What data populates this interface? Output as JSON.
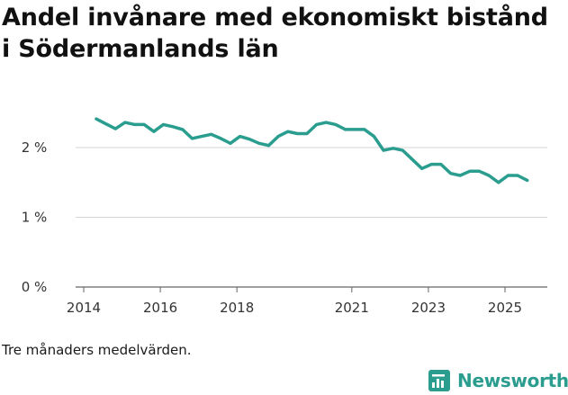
{
  "chart_data": {
    "type": "line",
    "title": "Andel invånare med ekonomiskt bistånd i Södermanlands län",
    "xlabel": "",
    "ylabel": "",
    "x_range": [
      2014.0,
      2026.3
    ],
    "ylim": [
      0,
      2.6
    ],
    "y_ticks": [
      {
        "value": 0,
        "label": "0 %"
      },
      {
        "value": 1,
        "label": "1 %"
      },
      {
        "value": 2,
        "label": "2 %"
      }
    ],
    "x_ticks": [
      {
        "value": 2014,
        "label": "2014"
      },
      {
        "value": 2016,
        "label": "2016"
      },
      {
        "value": 2018,
        "label": "2018"
      },
      {
        "value": 2021,
        "label": "2021"
      },
      {
        "value": 2023,
        "label": "2023"
      },
      {
        "value": 2025,
        "label": "2025"
      }
    ],
    "line_color": "#2a9d8f",
    "grid": true,
    "series": [
      {
        "name": "Andel invånare med ekonomiskt bistånd",
        "x": [
          2014.33,
          2014.58,
          2014.83,
          2015.08,
          2015.33,
          2015.58,
          2015.83,
          2016.08,
          2016.33,
          2016.58,
          2016.83,
          2017.08,
          2017.33,
          2017.58,
          2017.83,
          2018.08,
          2018.33,
          2018.58,
          2018.83,
          2019.08,
          2019.33,
          2019.58,
          2019.83,
          2020.08,
          2020.33,
          2020.58,
          2020.83,
          2021.08,
          2021.33,
          2021.58,
          2021.83,
          2022.08,
          2022.33,
          2022.58,
          2022.83,
          2023.08,
          2023.33,
          2023.58,
          2023.83,
          2024.08,
          2024.33,
          2024.58,
          2024.83,
          2025.08,
          2025.33,
          2025.58
        ],
        "values": [
          2.41,
          2.34,
          2.27,
          2.36,
          2.33,
          2.33,
          2.23,
          2.33,
          2.3,
          2.26,
          2.13,
          2.16,
          2.19,
          2.13,
          2.06,
          2.16,
          2.12,
          2.06,
          2.03,
          2.16,
          2.23,
          2.2,
          2.2,
          2.33,
          2.36,
          2.33,
          2.26,
          2.26,
          2.26,
          2.16,
          1.96,
          1.99,
          1.96,
          1.83,
          1.7,
          1.76,
          1.76,
          1.63,
          1.6,
          1.66,
          1.66,
          1.6,
          1.5,
          1.6,
          1.6,
          1.53
        ]
      }
    ]
  },
  "note": "Tre månaders medelvärden.",
  "brand": {
    "name": "Newsworthy",
    "icon": "newsworthy-logo-icon",
    "color": "#2a9d8f"
  }
}
